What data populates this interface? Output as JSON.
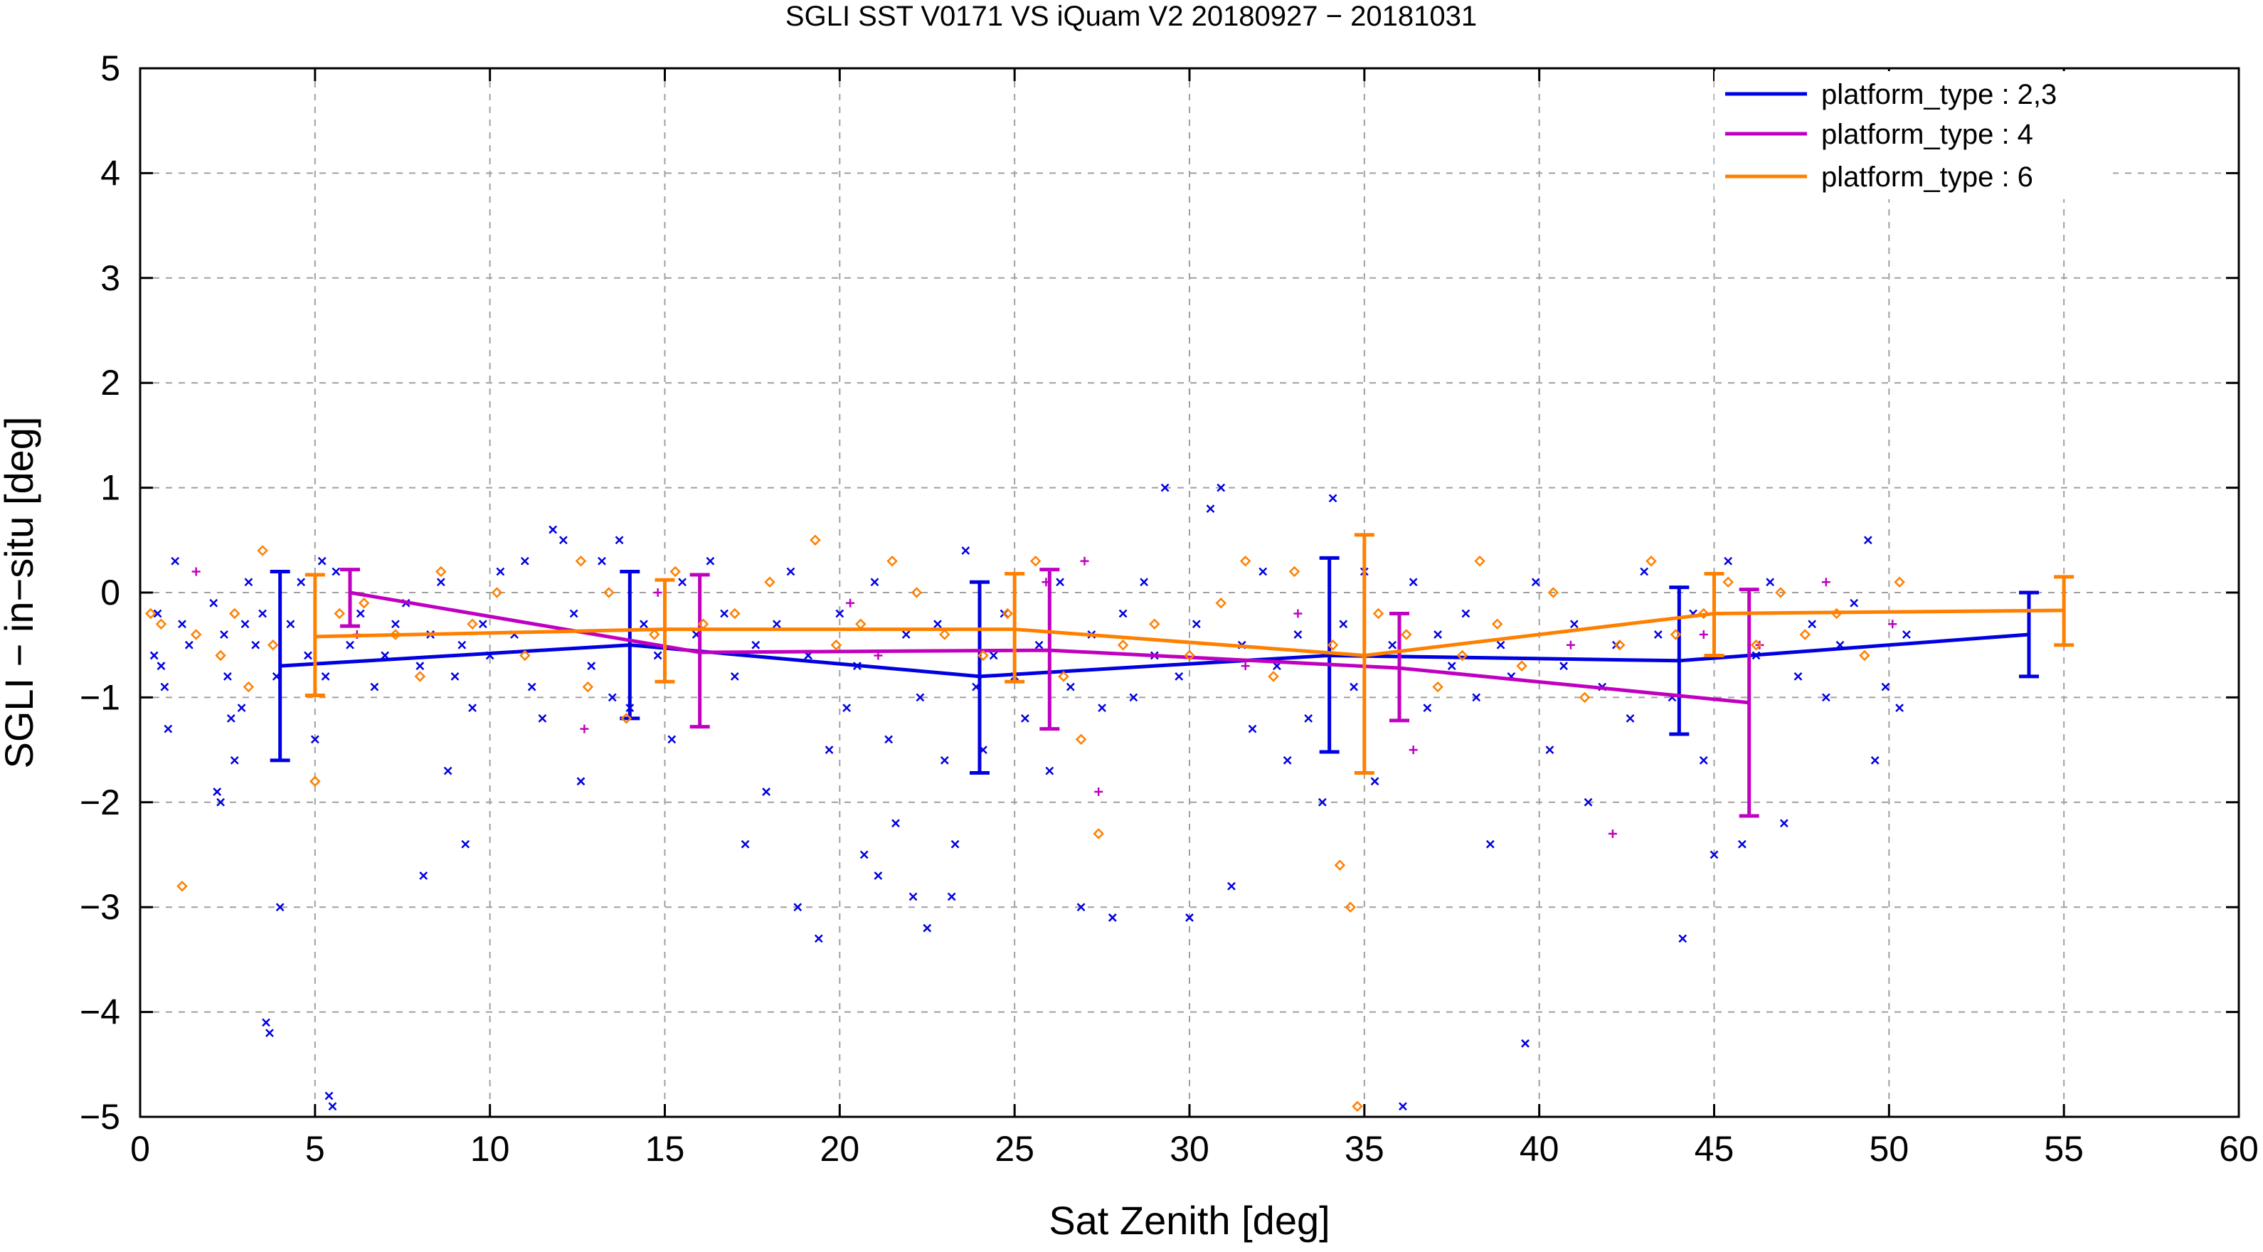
{
  "chart_data": {
    "type": "scatter",
    "title": "SGLI SST V0171 VS iQuam V2 20180927 − 20181031",
    "xlabel": "Sat Zenith [deg]",
    "ylabel": "SGLI − in−situ [deg]",
    "xlim": [
      0,
      60
    ],
    "ylim": [
      -5,
      5
    ],
    "x_ticks": [
      0,
      5,
      10,
      15,
      20,
      25,
      30,
      35,
      40,
      45,
      50,
      55,
      60
    ],
    "y_ticks": [
      -5,
      -4,
      -3,
      -2,
      -1,
      0,
      1,
      2,
      3,
      4,
      5
    ],
    "x_tick_labels": [
      "0",
      "5",
      "10",
      "15",
      "20",
      "25",
      "30",
      "35",
      "40",
      "45",
      "50",
      "55",
      "60"
    ],
    "y_tick_labels": [
      "−5",
      "−4",
      "−3",
      "−2",
      "−1",
      "0",
      "1",
      "2",
      "3",
      "4",
      "5"
    ],
    "grid": true,
    "legend_position": "top-right",
    "series": [
      {
        "name": "platform_type : 2,3",
        "color": "#0000e0",
        "marker": "x",
        "line": [
          [
            4,
            -0.7
          ],
          [
            14,
            -0.5
          ],
          [
            24,
            -0.8
          ],
          [
            34,
            -0.6
          ],
          [
            44,
            -0.65
          ],
          [
            54,
            -0.4
          ]
        ],
        "errorbars": [
          [
            4,
            -1.6,
            0.2
          ],
          [
            14,
            -1.2,
            0.2
          ],
          [
            24,
            -1.72,
            0.1
          ],
          [
            34,
            -1.52,
            0.33
          ],
          [
            44,
            -1.35,
            0.05
          ],
          [
            54,
            -0.8,
            0.0
          ]
        ],
        "points": [
          [
            0.4,
            -0.6
          ],
          [
            0.5,
            -0.2
          ],
          [
            0.6,
            -0.7
          ],
          [
            0.7,
            -0.9
          ],
          [
            0.8,
            -1.3
          ],
          [
            1.0,
            0.3
          ],
          [
            1.2,
            -0.3
          ],
          [
            1.4,
            -0.5
          ],
          [
            2.1,
            -0.1
          ],
          [
            2.2,
            -1.9
          ],
          [
            2.3,
            -2.0
          ],
          [
            2.4,
            -0.4
          ],
          [
            2.5,
            -0.8
          ],
          [
            2.6,
            -1.2
          ],
          [
            2.7,
            -1.6
          ],
          [
            2.9,
            -1.1
          ],
          [
            3.0,
            -0.3
          ],
          [
            3.1,
            0.1
          ],
          [
            3.3,
            -0.5
          ],
          [
            3.5,
            -0.2
          ],
          [
            3.6,
            -4.1
          ],
          [
            3.7,
            -4.2
          ],
          [
            3.9,
            -0.8
          ],
          [
            4.0,
            -3.0
          ],
          [
            4.3,
            -0.3
          ],
          [
            4.6,
            0.1
          ],
          [
            4.8,
            -0.6
          ],
          [
            5.0,
            -1.4
          ],
          [
            5.2,
            0.3
          ],
          [
            5.3,
            -0.8
          ],
          [
            5.4,
            -4.8
          ],
          [
            5.5,
            -4.9
          ],
          [
            5.6,
            0.2
          ],
          [
            6.0,
            -0.5
          ],
          [
            6.3,
            -0.2
          ],
          [
            6.7,
            -0.9
          ],
          [
            7.0,
            -0.6
          ],
          [
            7.3,
            -0.3
          ],
          [
            7.6,
            -0.1
          ],
          [
            8.0,
            -0.7
          ],
          [
            8.1,
            -2.7
          ],
          [
            8.3,
            -0.4
          ],
          [
            8.6,
            0.1
          ],
          [
            8.8,
            -1.7
          ],
          [
            9.0,
            -0.8
          ],
          [
            9.2,
            -0.5
          ],
          [
            9.3,
            -2.4
          ],
          [
            9.5,
            -1.1
          ],
          [
            9.8,
            -0.3
          ],
          [
            10.0,
            -0.6
          ],
          [
            10.3,
            0.2
          ],
          [
            10.7,
            -0.4
          ],
          [
            11.0,
            0.3
          ],
          [
            11.2,
            -0.9
          ],
          [
            11.5,
            -1.2
          ],
          [
            11.8,
            0.6
          ],
          [
            12.1,
            0.5
          ],
          [
            12.4,
            -0.2
          ],
          [
            12.6,
            -1.8
          ],
          [
            12.9,
            -0.7
          ],
          [
            13.2,
            0.3
          ],
          [
            13.5,
            -1.0
          ],
          [
            13.7,
            0.5
          ],
          [
            14.0,
            -1.1
          ],
          [
            14.4,
            -0.3
          ],
          [
            14.8,
            -0.6
          ],
          [
            15.2,
            -1.4
          ],
          [
            15.5,
            0.1
          ],
          [
            15.9,
            -0.4
          ],
          [
            16.3,
            0.3
          ],
          [
            16.7,
            -0.2
          ],
          [
            17.0,
            -0.8
          ],
          [
            17.3,
            -2.4
          ],
          [
            17.6,
            -0.5
          ],
          [
            17.9,
            -1.9
          ],
          [
            18.2,
            -0.3
          ],
          [
            18.6,
            0.2
          ],
          [
            18.8,
            -3.0
          ],
          [
            19.1,
            -0.6
          ],
          [
            19.4,
            -3.3
          ],
          [
            19.7,
            -1.5
          ],
          [
            20.0,
            -0.2
          ],
          [
            20.2,
            -1.1
          ],
          [
            20.5,
            -0.7
          ],
          [
            20.7,
            -2.5
          ],
          [
            21.0,
            0.1
          ],
          [
            21.1,
            -2.7
          ],
          [
            21.4,
            -1.4
          ],
          [
            21.6,
            -2.2
          ],
          [
            21.9,
            -0.4
          ],
          [
            22.1,
            -2.9
          ],
          [
            22.3,
            -1.0
          ],
          [
            22.5,
            -3.2
          ],
          [
            22.8,
            -0.3
          ],
          [
            23.0,
            -1.6
          ],
          [
            23.2,
            -2.9
          ],
          [
            23.3,
            -2.4
          ],
          [
            23.6,
            0.4
          ],
          [
            23.9,
            -0.9
          ],
          [
            24.1,
            -1.5
          ],
          [
            24.4,
            -0.6
          ],
          [
            24.7,
            -0.2
          ],
          [
            25.0,
            -0.8
          ],
          [
            25.3,
            -1.2
          ],
          [
            25.7,
            -0.5
          ],
          [
            26.0,
            -1.7
          ],
          [
            26.3,
            0.1
          ],
          [
            26.6,
            -0.9
          ],
          [
            26.9,
            -3.0
          ],
          [
            27.2,
            -0.4
          ],
          [
            27.5,
            -1.1
          ],
          [
            27.8,
            -3.1
          ],
          [
            28.1,
            -0.2
          ],
          [
            28.4,
            -1.0
          ],
          [
            28.7,
            0.1
          ],
          [
            29.0,
            -0.6
          ],
          [
            29.3,
            1.0
          ],
          [
            29.7,
            -0.8
          ],
          [
            30.0,
            -3.1
          ],
          [
            30.2,
            -0.3
          ],
          [
            30.6,
            0.8
          ],
          [
            30.9,
            1.0
          ],
          [
            31.2,
            -2.8
          ],
          [
            31.5,
            -0.5
          ],
          [
            31.8,
            -1.3
          ],
          [
            32.1,
            0.2
          ],
          [
            32.5,
            -0.7
          ],
          [
            32.8,
            -1.6
          ],
          [
            33.1,
            -0.4
          ],
          [
            33.4,
            -1.2
          ],
          [
            33.8,
            -2.0
          ],
          [
            34.1,
            0.9
          ],
          [
            34.4,
            -0.3
          ],
          [
            34.7,
            -0.9
          ],
          [
            35.0,
            0.2
          ],
          [
            35.3,
            -1.8
          ],
          [
            35.8,
            -0.5
          ],
          [
            36.1,
            -4.9
          ],
          [
            36.4,
            0.1
          ],
          [
            36.8,
            -1.1
          ],
          [
            37.1,
            -0.4
          ],
          [
            37.5,
            -0.7
          ],
          [
            37.9,
            -0.2
          ],
          [
            38.2,
            -1.0
          ],
          [
            38.6,
            -2.4
          ],
          [
            38.9,
            -0.5
          ],
          [
            39.2,
            -0.8
          ],
          [
            39.6,
            -4.3
          ],
          [
            39.9,
            0.1
          ],
          [
            40.3,
            -1.5
          ],
          [
            40.7,
            -0.7
          ],
          [
            41.0,
            -0.3
          ],
          [
            41.4,
            -2.0
          ],
          [
            41.8,
            -0.9
          ],
          [
            42.2,
            -0.5
          ],
          [
            42.6,
            -1.2
          ],
          [
            43.0,
            0.2
          ],
          [
            43.4,
            -0.4
          ],
          [
            43.8,
            -1.0
          ],
          [
            44.1,
            -3.3
          ],
          [
            44.4,
            -0.2
          ],
          [
            44.7,
            -1.6
          ],
          [
            45.0,
            -2.5
          ],
          [
            45.4,
            0.3
          ],
          [
            45.8,
            -2.4
          ],
          [
            46.2,
            -0.6
          ],
          [
            46.6,
            0.1
          ],
          [
            47.0,
            -2.2
          ],
          [
            47.4,
            -0.8
          ],
          [
            47.8,
            -0.3
          ],
          [
            48.2,
            -1.0
          ],
          [
            48.6,
            -0.5
          ],
          [
            49.0,
            -0.1
          ],
          [
            49.4,
            0.5
          ],
          [
            49.6,
            -1.6
          ],
          [
            49.9,
            -0.9
          ],
          [
            50.3,
            -1.1
          ],
          [
            50.5,
            -0.4
          ]
        ]
      },
      {
        "name": "platform_type : 4",
        "color": "#c000c0",
        "marker": "+",
        "line": [
          [
            6,
            0.0
          ],
          [
            16,
            -0.57
          ],
          [
            26,
            -0.55
          ],
          [
            36,
            -0.72
          ],
          [
            46,
            -1.05
          ]
        ],
        "errorbars": [
          [
            6,
            -0.32,
            0.22
          ],
          [
            16,
            -1.28,
            0.17
          ],
          [
            26,
            -1.3,
            0.22
          ],
          [
            36,
            -1.22,
            -0.2
          ],
          [
            46,
            -2.13,
            0.03
          ]
        ],
        "points": [
          [
            1.6,
            0.2
          ],
          [
            6.2,
            -0.4
          ],
          [
            12.7,
            -1.3
          ],
          [
            14.8,
            0.0
          ],
          [
            20.3,
            -0.1
          ],
          [
            21.1,
            -0.6
          ],
          [
            25.9,
            0.1
          ],
          [
            27.0,
            0.3
          ],
          [
            27.4,
            -1.9
          ],
          [
            31.6,
            -0.7
          ],
          [
            33.1,
            -0.2
          ],
          [
            36.4,
            -1.5
          ],
          [
            40.9,
            -0.5
          ],
          [
            42.1,
            -2.3
          ],
          [
            44.7,
            -0.4
          ],
          [
            46.3,
            -0.5
          ],
          [
            48.2,
            0.1
          ],
          [
            50.1,
            -0.3
          ]
        ]
      },
      {
        "name": "platform_type : 6",
        "color": "#ff8000",
        "marker": "diamond",
        "line": [
          [
            5,
            -0.42
          ],
          [
            15,
            -0.35
          ],
          [
            25,
            -0.35
          ],
          [
            35,
            -0.6
          ],
          [
            45,
            -0.2
          ],
          [
            55,
            -0.17
          ]
        ],
        "errorbars": [
          [
            5,
            -0.98,
            0.17
          ],
          [
            15,
            -0.85,
            0.12
          ],
          [
            25,
            -0.85,
            0.18
          ],
          [
            35,
            -1.72,
            0.55
          ],
          [
            45,
            -0.6,
            0.18
          ],
          [
            55,
            -0.5,
            0.15
          ]
        ],
        "points": [
          [
            0.3,
            -0.2
          ],
          [
            0.6,
            -0.3
          ],
          [
            1.2,
            -2.8
          ],
          [
            1.6,
            -0.4
          ],
          [
            2.3,
            -0.6
          ],
          [
            2.7,
            -0.2
          ],
          [
            3.1,
            -0.9
          ],
          [
            3.5,
            0.4
          ],
          [
            3.8,
            -0.5
          ],
          [
            5.0,
            -1.8
          ],
          [
            5.7,
            -0.2
          ],
          [
            6.4,
            -0.1
          ],
          [
            7.3,
            -0.4
          ],
          [
            8.0,
            -0.8
          ],
          [
            8.6,
            0.2
          ],
          [
            9.5,
            -0.3
          ],
          [
            10.2,
            0.0
          ],
          [
            11.0,
            -0.6
          ],
          [
            12.6,
            0.3
          ],
          [
            12.8,
            -0.9
          ],
          [
            13.4,
            0.0
          ],
          [
            13.9,
            -1.2
          ],
          [
            14.7,
            -0.4
          ],
          [
            15.3,
            0.2
          ],
          [
            16.1,
            -0.3
          ],
          [
            17.0,
            -0.2
          ],
          [
            18.0,
            0.1
          ],
          [
            19.3,
            0.5
          ],
          [
            19.9,
            -0.5
          ],
          [
            20.6,
            -0.3
          ],
          [
            21.5,
            0.3
          ],
          [
            22.2,
            0.0
          ],
          [
            23.0,
            -0.4
          ],
          [
            24.1,
            -0.6
          ],
          [
            24.8,
            -0.2
          ],
          [
            25.6,
            0.3
          ],
          [
            26.4,
            -0.8
          ],
          [
            26.9,
            -1.4
          ],
          [
            27.4,
            -2.3
          ],
          [
            28.1,
            -0.5
          ],
          [
            29.0,
            -0.3
          ],
          [
            30.0,
            -0.6
          ],
          [
            30.9,
            -0.1
          ],
          [
            31.6,
            0.3
          ],
          [
            32.4,
            -0.8
          ],
          [
            33.0,
            0.2
          ],
          [
            34.1,
            -0.5
          ],
          [
            34.3,
            -2.6
          ],
          [
            34.6,
            -3.0
          ],
          [
            34.8,
            -4.9
          ],
          [
            35.4,
            -0.2
          ],
          [
            36.2,
            -0.4
          ],
          [
            37.1,
            -0.9
          ],
          [
            37.8,
            -0.6
          ],
          [
            38.3,
            0.3
          ],
          [
            38.8,
            -0.3
          ],
          [
            39.5,
            -0.7
          ],
          [
            40.4,
            0.0
          ],
          [
            41.3,
            -1.0
          ],
          [
            42.3,
            -0.5
          ],
          [
            43.2,
            0.3
          ],
          [
            43.9,
            -0.4
          ],
          [
            44.7,
            -0.2
          ],
          [
            45.4,
            0.1
          ],
          [
            46.2,
            -0.5
          ],
          [
            46.9,
            0.0
          ],
          [
            47.6,
            -0.4
          ],
          [
            48.5,
            -0.2
          ],
          [
            49.3,
            -0.6
          ],
          [
            50.3,
            0.1
          ]
        ]
      }
    ]
  }
}
